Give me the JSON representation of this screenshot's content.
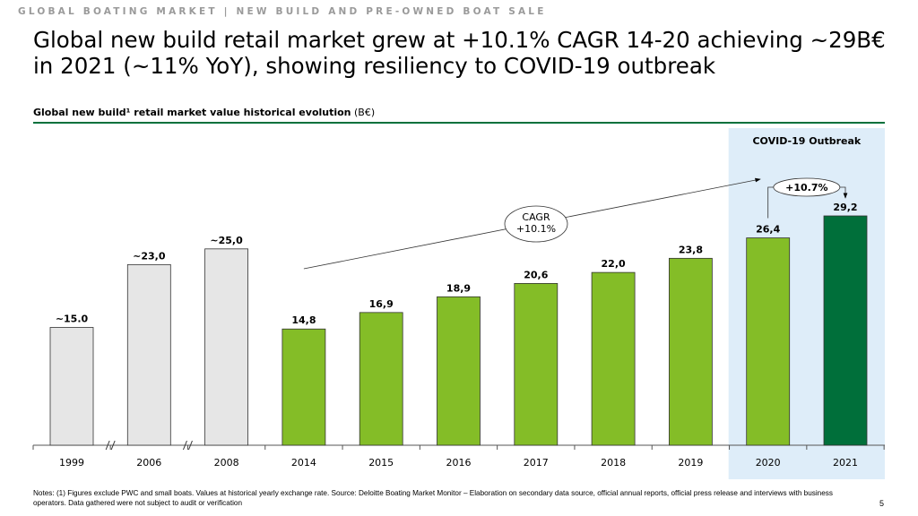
{
  "header": {
    "supertitle": "GLOBAL BOATING MARKET | NEW BUILD AND PRE-OWNED BOAT SALE",
    "title": "Global new build retail market grew at +10.1% CAGR 14-20 achieving ~29B€ in 2021 (~11% YoY), showing resiliency to COVID-19 outbreak"
  },
  "chart_data": {
    "type": "bar",
    "title": "Global new build¹ retail market value historical evolution",
    "title_unit": "(B€)",
    "categories": [
      "1999",
      "2006",
      "2008",
      "2014",
      "2015",
      "2016",
      "2017",
      "2018",
      "2019",
      "2020",
      "2021"
    ],
    "values": [
      15.0,
      23.0,
      25.0,
      14.8,
      16.9,
      18.9,
      20.6,
      22.0,
      23.8,
      26.4,
      29.2
    ],
    "data_labels": [
      "~15.0",
      "~23,0",
      "~25,0",
      "14,8",
      "16,9",
      "18,9",
      "20,6",
      "22,0",
      "23,8",
      "26,4",
      "29,2"
    ],
    "bar_colors": [
      "#e6e6e6",
      "#e6e6e6",
      "#e6e6e6",
      "#84bd27",
      "#84bd27",
      "#84bd27",
      "#84bd27",
      "#84bd27",
      "#84bd27",
      "#84bd27",
      "#006f3a"
    ],
    "axis_breaks_after": [
      "1999",
      "2006"
    ],
    "highlight": {
      "label": "COVID-19 Outbreak",
      "categories": [
        "2020",
        "2021"
      ],
      "color": "#deedf9"
    },
    "annotations": [
      {
        "text_lines": [
          "CAGR",
          "+10.1%"
        ],
        "from": "2014",
        "to": "2020"
      },
      {
        "text": "+10.7%",
        "from": "2020",
        "to": "2021"
      }
    ],
    "ylim": [
      0,
      30
    ]
  },
  "footer": {
    "notes": "Notes: (1) Figures exclude PWC and small boats. Values at historical yearly exchange rate. Source: Deloitte Boating Market Monitor – Elaboration on secondary data source, official annual reports, official press release and interviews with business operators. Data gathered were not subject to audit or verification",
    "page": "5"
  }
}
